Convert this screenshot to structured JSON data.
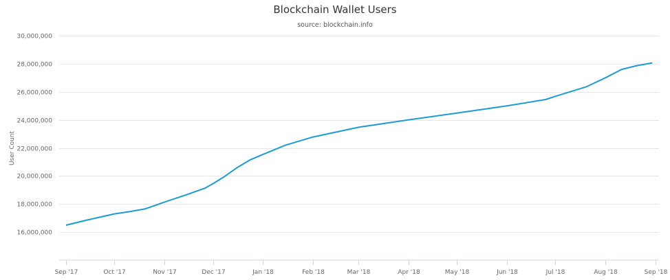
{
  "chart_data": {
    "type": "line",
    "title": "Blockchain Wallet Users",
    "subtitle": "source: blockchain.info",
    "xlabel": "",
    "ylabel": "User Count",
    "ylim": [
      14000000,
      30000000
    ],
    "yticks": [
      16000000,
      18000000,
      20000000,
      22000000,
      24000000,
      26000000,
      28000000,
      30000000
    ],
    "ytick_labels": [
      "16,000,000",
      "18,000,000",
      "20,000,000",
      "22,000,000",
      "24,000,000",
      "26,000,000",
      "28,000,000",
      "30,000,000"
    ],
    "xlim": [
      "2017-09-01",
      "2018-09-01"
    ],
    "xticks": [
      "2017-09-01",
      "2017-10-01",
      "2017-11-01",
      "2017-12-01",
      "2018-01-01",
      "2018-02-01",
      "2018-03-01",
      "2018-04-01",
      "2018-05-01",
      "2018-06-01",
      "2018-07-01",
      "2018-08-01",
      "2018-09-01"
    ],
    "xtick_labels": [
      "Sep '17",
      "Oct '17",
      "Nov '17",
      "Dec '17",
      "Jan '18",
      "Feb '18",
      "Mar '18",
      "Apr '18",
      "May '18",
      "Jun '18",
      "Jul '18",
      "Aug '18",
      "Sep '18"
    ],
    "grid": true,
    "color": "#1a9bd7",
    "series": [
      {
        "name": "User Count",
        "x": [
          "2017-09-01",
          "2017-09-15",
          "2017-10-01",
          "2017-10-11",
          "2017-10-20",
          "2017-11-01",
          "2017-11-15",
          "2017-11-26",
          "2017-12-01",
          "2017-12-08",
          "2017-12-16",
          "2017-12-24",
          "2018-01-01",
          "2018-01-15",
          "2018-02-01",
          "2018-03-01",
          "2018-04-01",
          "2018-05-01",
          "2018-06-01",
          "2018-06-25",
          "2018-07-01",
          "2018-07-20",
          "2018-08-01",
          "2018-08-11",
          "2018-08-20",
          "2018-08-30"
        ],
        "values": [
          16490000,
          16880000,
          17300000,
          17470000,
          17650000,
          18140000,
          18680000,
          19130000,
          19450000,
          19950000,
          20600000,
          21150000,
          21540000,
          22200000,
          22780000,
          23470000,
          24000000,
          24480000,
          25000000,
          25450000,
          25680000,
          26350000,
          27000000,
          27600000,
          27850000,
          28060000
        ]
      }
    ]
  }
}
